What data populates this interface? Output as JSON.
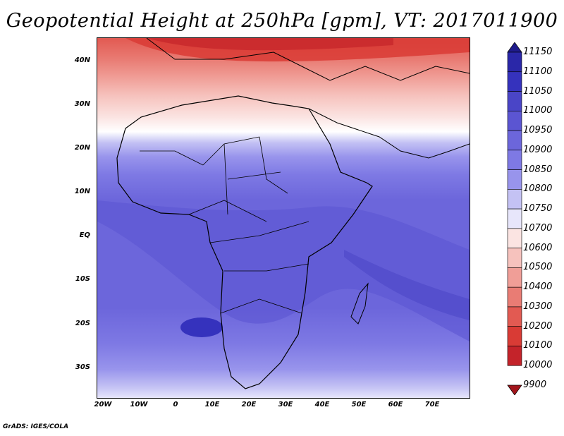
{
  "title": "Geopotential Height at 250hPa [gpm], VT: 2017011900",
  "lat_labels": [
    "40N",
    "30N",
    "20N",
    "10N",
    "EQ",
    "10S",
    "20S",
    "30S"
  ],
  "lon_labels": [
    "20W",
    "10W",
    "0",
    "10E",
    "20E",
    "30E",
    "40E",
    "50E",
    "60E",
    "70E"
  ],
  "colorbar": {
    "levels": [
      "11150",
      "11100",
      "11050",
      "11000",
      "10950",
      "10900",
      "10850",
      "10800",
      "10750",
      "10700",
      "10600",
      "10500",
      "10400",
      "10300",
      "10200",
      "10100",
      "10000",
      "9900"
    ],
    "colors": [
      "#1f1b8c",
      "#2a27a8",
      "#3532bd",
      "#4a45c7",
      "#5b55d2",
      "#6c66db",
      "#7e79e4",
      "#9894ec",
      "#c4c2f4",
      "#e7e6fb",
      "#fbe4e2",
      "#f6c2bd",
      "#f09e97",
      "#e97c74",
      "#e25a52",
      "#d93b35",
      "#c4232a",
      "#a1151c"
    ]
  },
  "credit": "GrADS: IGES/COLA"
}
